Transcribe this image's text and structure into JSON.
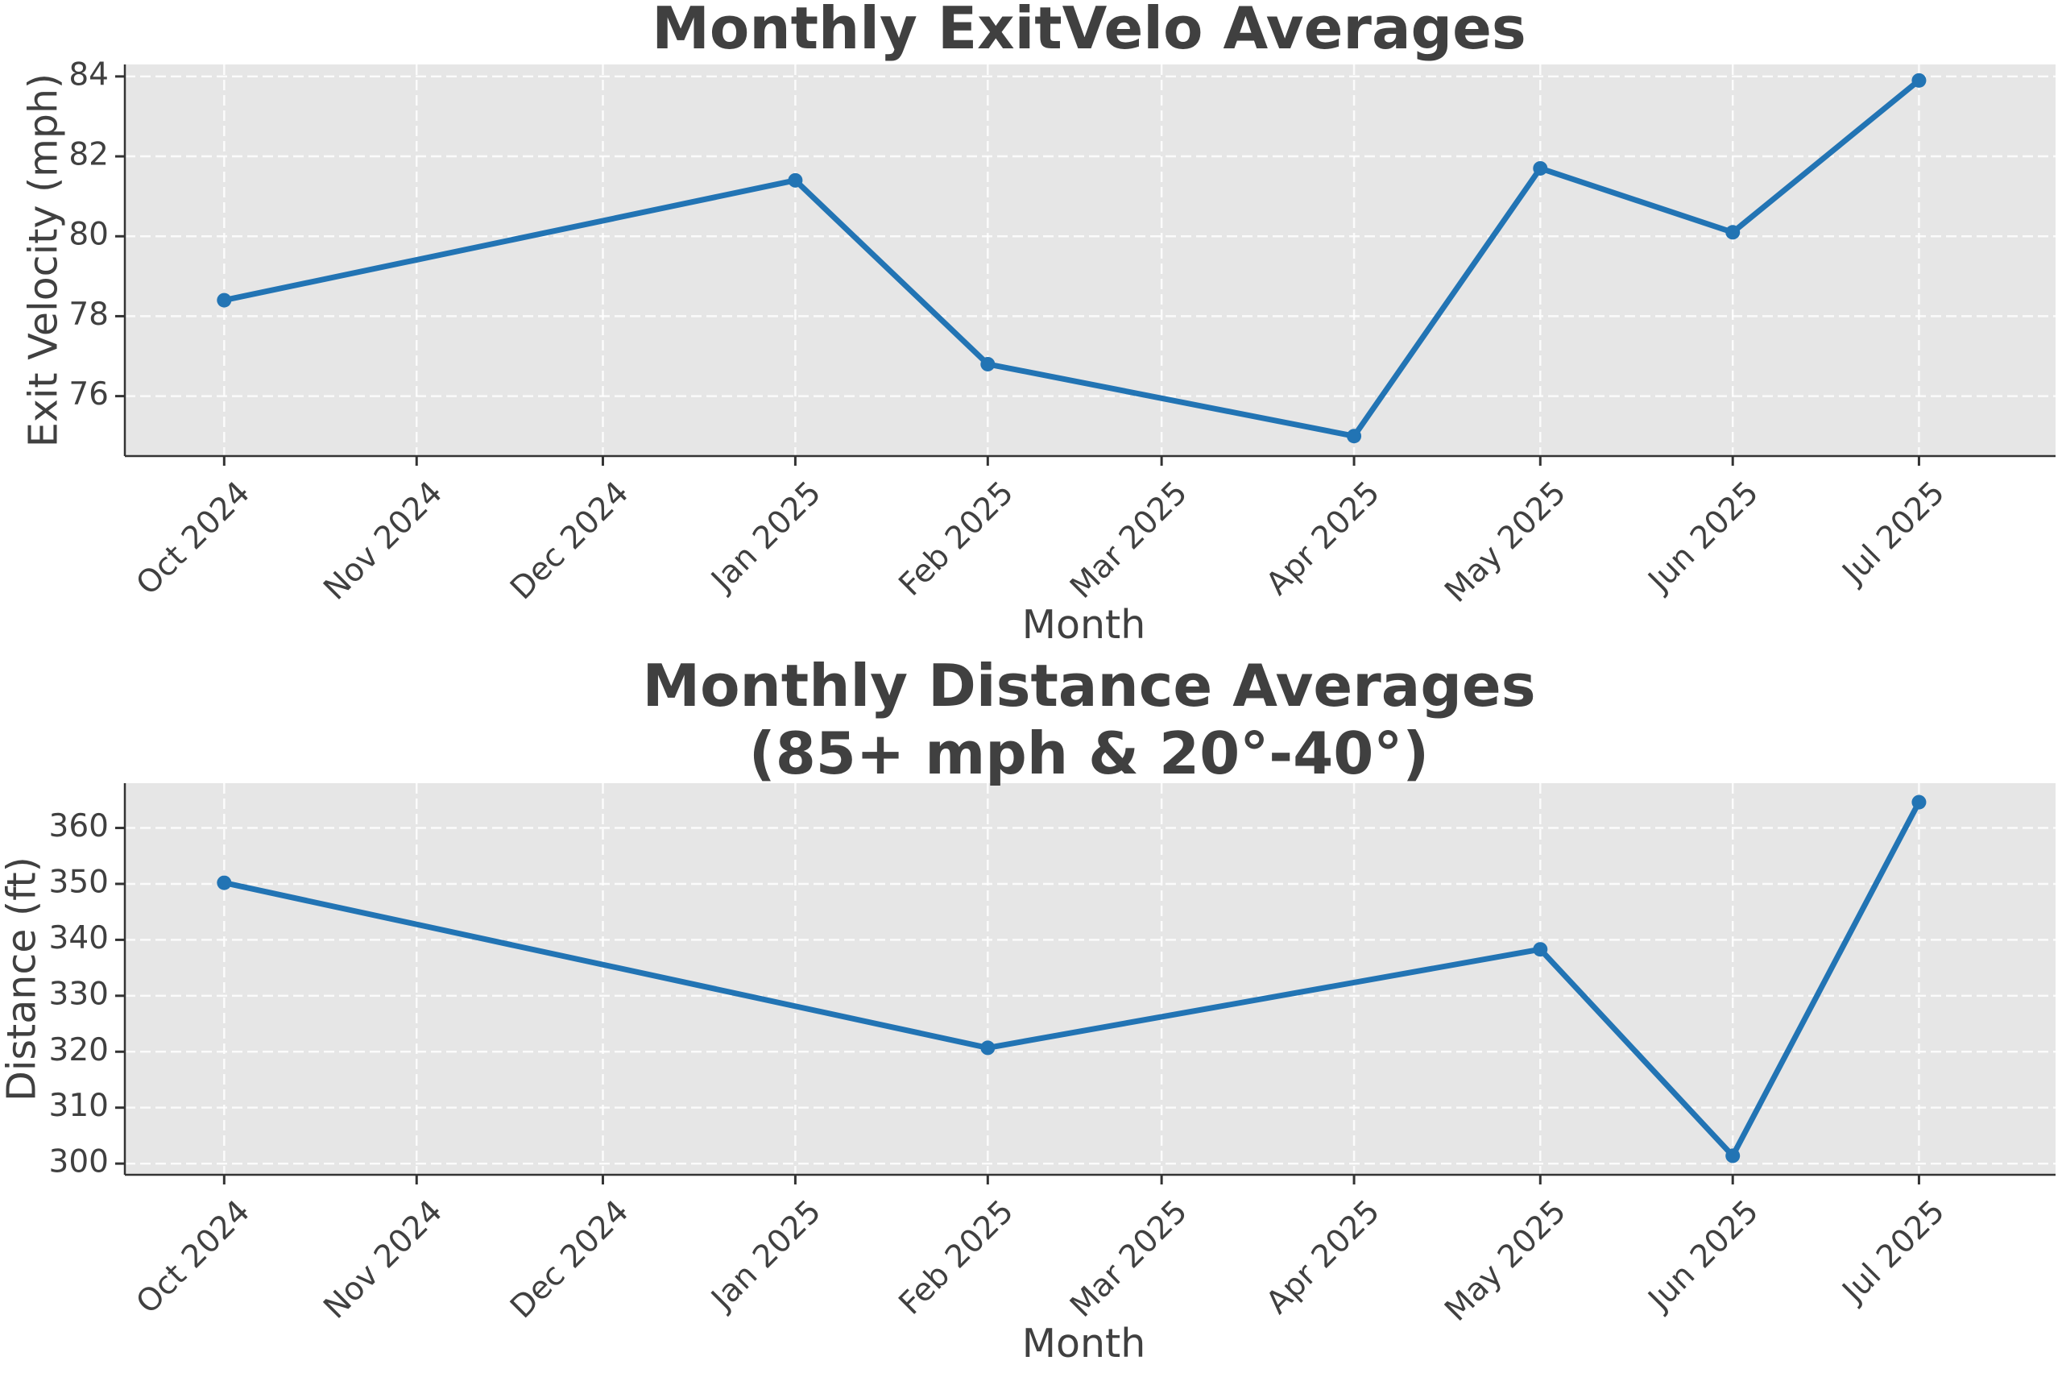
{
  "chart_data": [
    {
      "type": "line",
      "title": "Monthly ExitVelo Averages",
      "subtitle": "",
      "xlabel": "Month",
      "ylabel": "Exit Velocity (mph)",
      "x_ticks": [
        "Oct 2024",
        "Nov 2024",
        "Dec 2024",
        "Jan 2025",
        "Feb 2025",
        "Mar 2025",
        "Apr 2025",
        "May 2025",
        "Jun 2025",
        "Jul 2025"
      ],
      "xlim": [
        "2024-09-15",
        "2025-07-23"
      ],
      "ylim": [
        74.5,
        84.3
      ],
      "y_ticks": [
        76,
        78,
        80,
        82,
        84
      ],
      "grid": true,
      "series": [
        {
          "x": [
            "2024-10-01",
            "2025-01-01",
            "2025-02-01",
            "2025-04-01",
            "2025-05-01",
            "2025-06-01",
            "2025-07-01"
          ],
          "values": [
            78.4,
            81.4,
            76.8,
            75.0,
            81.7,
            80.1,
            83.9
          ],
          "color": "#2274b4"
        }
      ]
    },
    {
      "type": "line",
      "title": "Monthly Distance Averages",
      "subtitle": "(85+ mph & 20°-40°)",
      "xlabel": "Month",
      "ylabel": "Distance (ft)",
      "x_ticks": [
        "Oct 2024",
        "Nov 2024",
        "Dec 2024",
        "Jan 2025",
        "Feb 2025",
        "Mar 2025",
        "Apr 2025",
        "May 2025",
        "Jun 2025",
        "Jul 2025"
      ],
      "xlim": [
        "2024-09-15",
        "2025-07-23"
      ],
      "ylim": [
        298,
        368
      ],
      "y_ticks": [
        300,
        310,
        320,
        330,
        340,
        350,
        360
      ],
      "grid": true,
      "series": [
        {
          "x": [
            "2024-10-01",
            "2025-02-01",
            "2025-05-01",
            "2025-06-01",
            "2025-07-01"
          ],
          "values": [
            350.2,
            320.7,
            338.3,
            301.4,
            364.6
          ],
          "color": "#2274b4"
        }
      ]
    }
  ]
}
